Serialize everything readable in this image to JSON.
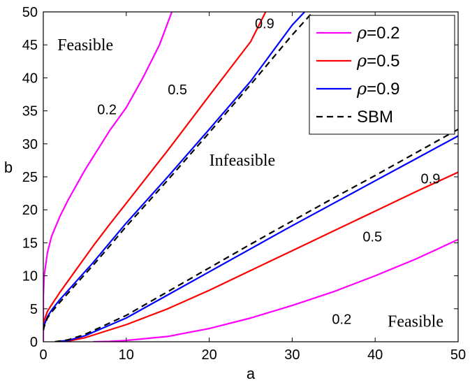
{
  "chart_data": {
    "type": "line",
    "xlabel": "a",
    "ylabel": "b",
    "xlim": [
      0,
      50
    ],
    "ylim": [
      0,
      50
    ],
    "xticks": [
      0,
      10,
      20,
      30,
      40,
      50
    ],
    "yticks": [
      0,
      5,
      10,
      15,
      20,
      25,
      30,
      35,
      40,
      45,
      50
    ],
    "grid": false,
    "legend_position": "top-right",
    "legend": [
      {
        "symbol": "ρ",
        "text": "=0.2",
        "color": "#ff00ff",
        "style": "solid"
      },
      {
        "symbol": "ρ",
        "text": "=0.5",
        "color": "#ff0000",
        "style": "solid"
      },
      {
        "symbol": "ρ",
        "text": "=0.9",
        "color": "#0000ff",
        "style": "solid"
      },
      {
        "symbol": "",
        "text": "SBM",
        "color": "#000000",
        "style": "dashed"
      }
    ],
    "series": [
      {
        "color": "#ff00ff",
        "dash": false,
        "points": [
          [
            0,
            0
          ],
          [
            0.01,
            7
          ],
          [
            0.1,
            10
          ],
          [
            0.5,
            13.5
          ],
          [
            1,
            16
          ],
          [
            2,
            19
          ],
          [
            3,
            21.5
          ],
          [
            5,
            26
          ],
          [
            8,
            32
          ],
          [
            10,
            35.5
          ],
          [
            12,
            40
          ],
          [
            14,
            45
          ],
          [
            15.5,
            50
          ]
        ]
      },
      {
        "color": "#ff00ff",
        "dash": false,
        "points": [
          [
            6,
            0
          ],
          [
            8,
            0.05
          ],
          [
            10,
            0.2
          ],
          [
            15,
            0.8
          ],
          [
            20,
            2
          ],
          [
            25,
            3.6
          ],
          [
            30,
            5.5
          ],
          [
            35,
            7.6
          ],
          [
            40,
            10
          ],
          [
            45,
            12.6
          ],
          [
            50,
            15.5
          ]
        ]
      },
      {
        "color": "#ff0000",
        "dash": false,
        "points": [
          [
            0,
            2.5
          ],
          [
            0.1,
            3.2
          ],
          [
            0.5,
            4.6
          ],
          [
            1,
            5.6
          ],
          [
            2,
            7.5
          ],
          [
            4,
            11
          ],
          [
            6,
            14.5
          ],
          [
            8,
            17.8
          ],
          [
            10,
            21
          ],
          [
            15,
            29
          ],
          [
            20,
            37.3
          ],
          [
            25,
            45.5
          ],
          [
            26,
            48
          ],
          [
            26.8,
            50
          ]
        ]
      },
      {
        "color": "#ff0000",
        "dash": false,
        "points": [
          [
            2,
            0
          ],
          [
            3,
            0.1
          ],
          [
            5,
            0.6
          ],
          [
            10,
            2.6
          ],
          [
            15,
            5
          ],
          [
            20,
            7.8
          ],
          [
            25,
            10.8
          ],
          [
            30,
            13.8
          ],
          [
            35,
            16.8
          ],
          [
            40,
            19.8
          ],
          [
            45,
            22.8
          ],
          [
            50,
            25.7
          ]
        ]
      },
      {
        "color": "#0000ff",
        "dash": false,
        "points": [
          [
            0,
            1.8
          ],
          [
            0.1,
            2.5
          ],
          [
            0.5,
            3.8
          ],
          [
            1,
            4.8
          ],
          [
            2,
            6.4
          ],
          [
            4,
            9.2
          ],
          [
            6,
            12
          ],
          [
            8,
            15
          ],
          [
            10,
            18
          ],
          [
            15,
            25
          ],
          [
            20,
            32.2
          ],
          [
            25,
            39.5
          ],
          [
            30,
            48
          ],
          [
            31.5,
            50
          ]
        ]
      },
      {
        "color": "#0000ff",
        "dash": false,
        "points": [
          [
            1.5,
            0
          ],
          [
            3,
            0.2
          ],
          [
            5,
            0.9
          ],
          [
            10,
            3.6
          ],
          [
            15,
            7.1
          ],
          [
            20,
            10.6
          ],
          [
            25,
            14.1
          ],
          [
            30,
            17.6
          ],
          [
            35,
            21
          ],
          [
            40,
            24.4
          ],
          [
            45,
            27.8
          ],
          [
            50,
            31.2
          ]
        ]
      },
      {
        "color": "#000000",
        "dash": true,
        "points": [
          [
            0,
            1.7
          ],
          [
            0.1,
            2.3
          ],
          [
            0.5,
            3.6
          ],
          [
            1,
            4.5
          ],
          [
            2,
            6
          ],
          [
            4,
            8.8
          ],
          [
            6,
            11.6
          ],
          [
            8,
            14.5
          ],
          [
            10,
            17.5
          ],
          [
            15,
            24.5
          ],
          [
            20,
            31.7
          ],
          [
            25,
            39
          ],
          [
            30,
            46.5
          ],
          [
            32.5,
            50
          ]
        ]
      },
      {
        "color": "#000000",
        "dash": true,
        "points": [
          [
            1.4,
            0
          ],
          [
            3,
            0.3
          ],
          [
            5,
            1.1
          ],
          [
            10,
            4
          ],
          [
            15,
            7.6
          ],
          [
            20,
            11.2
          ],
          [
            25,
            14.8
          ],
          [
            30,
            18.3
          ],
          [
            35,
            21.8
          ],
          [
            40,
            25.2
          ],
          [
            45,
            28.7
          ],
          [
            50,
            32.2
          ]
        ]
      }
    ],
    "annotations": [
      {
        "text": "0.2",
        "x": 6.5,
        "y": 34.5,
        "kind": "label"
      },
      {
        "text": "0.5",
        "x": 15,
        "y": 37.5,
        "kind": "label"
      },
      {
        "text": "0.9",
        "x": 25.5,
        "y": 47.5,
        "kind": "label"
      },
      {
        "text": "0.9",
        "x": 45.5,
        "y": 24,
        "kind": "label"
      },
      {
        "text": "0.5",
        "x": 38.5,
        "y": 15.2,
        "kind": "label"
      },
      {
        "text": "0.2",
        "x": 34.8,
        "y": 2.7,
        "kind": "label"
      },
      {
        "text": "Feasible",
        "x": 1.7,
        "y": 44.2,
        "kind": "region"
      },
      {
        "text": "Infeasible",
        "x": 20,
        "y": 26.7,
        "kind": "region"
      },
      {
        "text": "Feasible",
        "x": 41.5,
        "y": 2.3,
        "kind": "region"
      }
    ]
  }
}
